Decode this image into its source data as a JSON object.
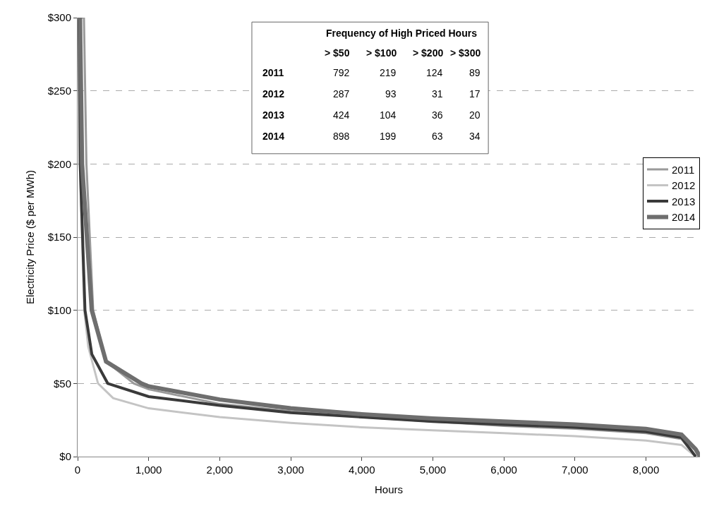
{
  "chart_data": {
    "type": "line",
    "xlabel": "Hours",
    "ylabel": "Electricity Price ($ per MWh)",
    "xlim": [
      0,
      8760
    ],
    "ylim": [
      0,
      300
    ],
    "xticks": [
      0,
      {
        "value": 1000,
        "label": "1,000"
      },
      {
        "value": 2000,
        "label": "2,000"
      },
      {
        "value": 3000,
        "label": "3,000"
      },
      {
        "value": 4000,
        "label": "4,000"
      },
      {
        "value": 5000,
        "label": "5,000"
      },
      {
        "value": 6000,
        "label": "6,000"
      },
      {
        "value": 7000,
        "label": "7,000"
      },
      {
        "value": 8000,
        "label": "8,000"
      }
    ],
    "yticks": [
      {
        "value": 0,
        "label": "$0"
      },
      {
        "value": 50,
        "label": "$50"
      },
      {
        "value": 100,
        "label": "$100"
      },
      {
        "value": 150,
        "label": "$150"
      },
      {
        "value": 200,
        "label": "$200"
      },
      {
        "value": 250,
        "label": "$250"
      },
      {
        "value": 300,
        "label": "$300"
      }
    ],
    "grid": "y",
    "legend": "right",
    "marker": "none",
    "series": [
      {
        "name": "2011",
        "color": "#9a9a9a",
        "x": [
          0,
          89,
          124,
          219,
          400,
          792,
          1000,
          2000,
          3000,
          4000,
          5000,
          6000,
          7000,
          8000,
          8500,
          8700
        ],
        "values": [
          300,
          300,
          200,
          100,
          65,
          50,
          46,
          36,
          31,
          27,
          24,
          21,
          19,
          16,
          12,
          0
        ]
      },
      {
        "name": "2012",
        "color": "#c4c4c4",
        "x": [
          0,
          17,
          31,
          93,
          150,
          287,
          500,
          1000,
          2000,
          3000,
          4000,
          5000,
          6000,
          7000,
          8000,
          8500,
          8700
        ],
        "values": [
          300,
          300,
          200,
          100,
          75,
          50,
          40,
          33,
          27,
          23,
          20,
          18,
          16,
          14,
          11,
          8,
          0
        ]
      },
      {
        "name": "2013",
        "color": "#3a3a3a",
        "x": [
          0,
          20,
          36,
          104,
          200,
          424,
          1000,
          2000,
          3000,
          4000,
          5000,
          6000,
          7000,
          8000,
          8500,
          8700
        ],
        "values": [
          300,
          300,
          200,
          100,
          70,
          50,
          41,
          35,
          30,
          27,
          24,
          22,
          20,
          17,
          13,
          0
        ]
      },
      {
        "name": "2014",
        "color": "#6e6e6e",
        "x": [
          0,
          34,
          63,
          199,
          400,
          898,
          1000,
          2000,
          3000,
          4000,
          5000,
          6000,
          7000,
          8000,
          8500,
          8700,
          8760
        ],
        "values": [
          300,
          300,
          200,
          100,
          65,
          50,
          48,
          39,
          33,
          29,
          26,
          24,
          22,
          19,
          15,
          5,
          0
        ]
      }
    ],
    "annotations": [
      "Frequency of High Priced Hours",
      "> $50",
      "> $100",
      "> $200",
      "> $300",
      "2011",
      "792",
      "219",
      "124",
      "89",
      "2012",
      "287",
      "93",
      "31",
      "17",
      "2013",
      "424",
      "104",
      "36",
      "20",
      "2014",
      "898",
      "199",
      "63",
      "34"
    ]
  }
}
